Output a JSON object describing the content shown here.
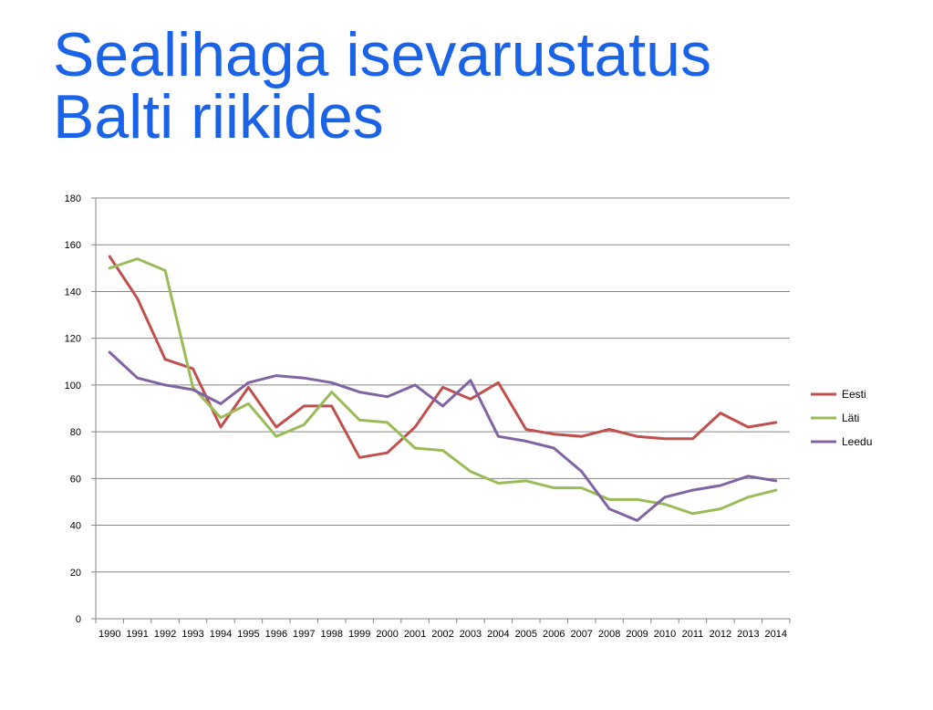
{
  "slide": {
    "title_line1": "Sealihaga isevarustatus",
    "title_line2": "Balti riikides"
  },
  "chart_data": {
    "type": "line",
    "title": "",
    "xlabel": "",
    "ylabel": "",
    "ylim": [
      0,
      180
    ],
    "yticks": [
      0,
      20,
      40,
      60,
      80,
      100,
      120,
      140,
      160,
      180
    ],
    "grid": true,
    "legend_position": "right",
    "categories": [
      "1990",
      "1991",
      "1992",
      "1993",
      "1994",
      "1995",
      "1996",
      "1997",
      "1998",
      "1999",
      "2000",
      "2001",
      "2002",
      "2003",
      "2004",
      "2005",
      "2006",
      "2007",
      "2008",
      "2009",
      "2010",
      "2011",
      "2012",
      "2013",
      "2014"
    ],
    "series": [
      {
        "name": "Eesti",
        "color": "#c0504d",
        "values": [
          155,
          137,
          111,
          107,
          82,
          99,
          82,
          91,
          91,
          69,
          71,
          82,
          99,
          94,
          101,
          81,
          79,
          78,
          81,
          78,
          77,
          77,
          88,
          82,
          84
        ]
      },
      {
        "name": "Läti",
        "color": "#9bbb59",
        "values": [
          150,
          154,
          149,
          99,
          86,
          92,
          78,
          83,
          97,
          85,
          84,
          73,
          72,
          63,
          58,
          59,
          56,
          56,
          51,
          51,
          49,
          45,
          47,
          52,
          55
        ]
      },
      {
        "name": "Leedu",
        "color": "#8064a2",
        "values": [
          114,
          103,
          100,
          98,
          92,
          101,
          104,
          103,
          101,
          97,
          95,
          100,
          91,
          102,
          78,
          76,
          73,
          63,
          47,
          42,
          52,
          55,
          57,
          61,
          59
        ]
      }
    ]
  }
}
